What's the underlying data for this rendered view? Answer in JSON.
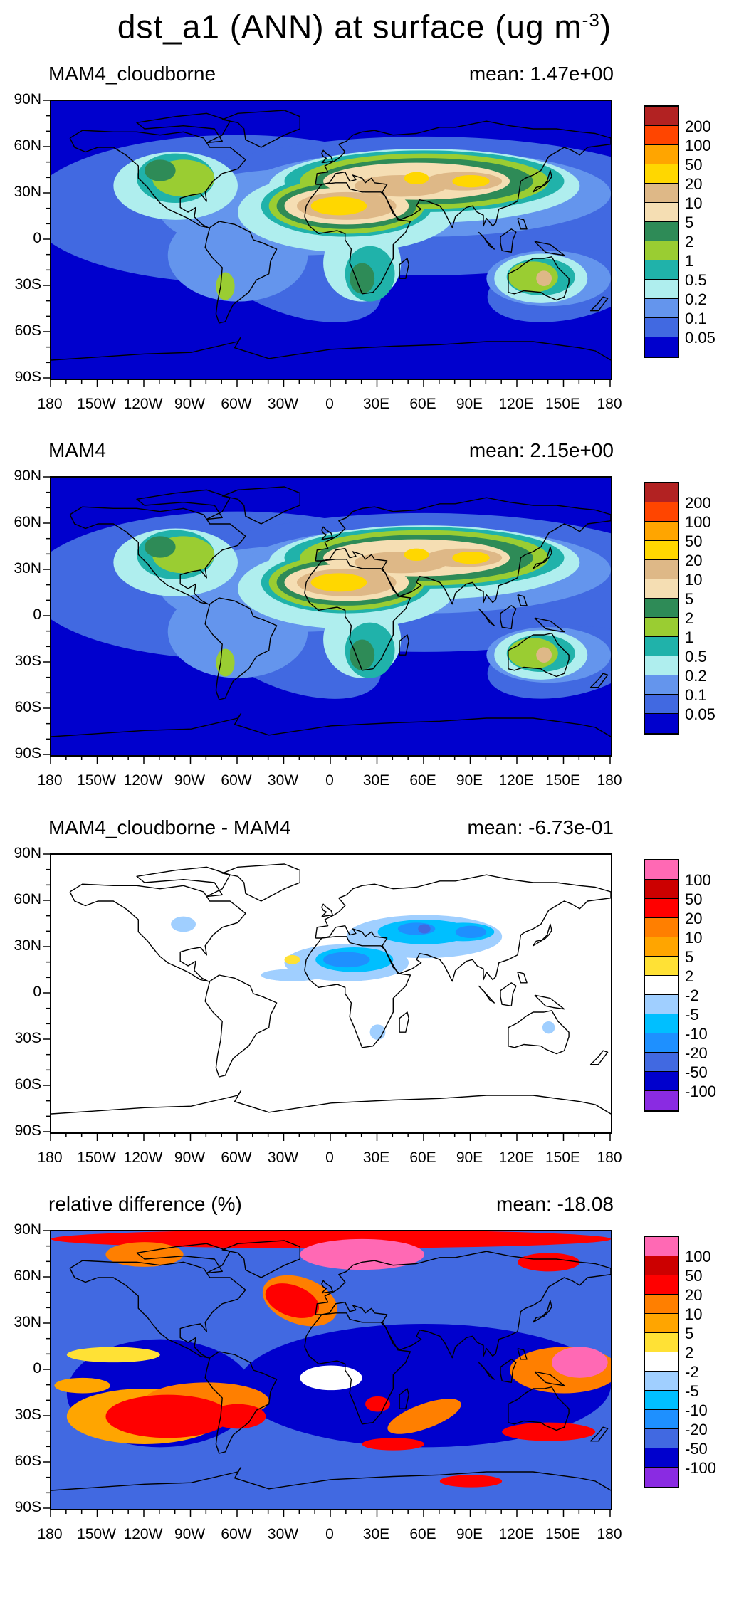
{
  "figure": {
    "title_main": "dst_a1 (ANN) at surface (ug m",
    "title_exp": "-3",
    "title_end": ")"
  },
  "axes": {
    "lat_labels": [
      "90N",
      "60N",
      "30N",
      "0",
      "30S",
      "60S",
      "90S"
    ],
    "lon_labels": [
      "180",
      "150W",
      "120W",
      "90W",
      "60W",
      "30W",
      "0",
      "30E",
      "60E",
      "90E",
      "120E",
      "150E",
      "180"
    ]
  },
  "panels": [
    {
      "name": "MAM4_cloudborne",
      "mean": "mean: 1.47e+00",
      "scheme": "conc",
      "colorbar": {
        "colors": [
          "#b22222",
          "#ff4500",
          "#ffa500",
          "#ffd700",
          "#deb887",
          "#f5deb3",
          "#2e8b57",
          "#9acd32",
          "#20b2aa",
          "#afeeee",
          "#6495ed",
          "#4169e1",
          "#0000cd"
        ],
        "labels": [
          "200",
          "100",
          "50",
          "20",
          "10",
          "5",
          "2",
          "1",
          "0.5",
          "0.2",
          "0.1",
          "0.05"
        ]
      }
    },
    {
      "name": "MAM4",
      "mean": "mean: 2.15e+00",
      "scheme": "conc",
      "colorbar": {
        "colors": [
          "#b22222",
          "#ff4500",
          "#ffa500",
          "#ffd700",
          "#deb887",
          "#f5deb3",
          "#2e8b57",
          "#9acd32",
          "#20b2aa",
          "#afeeee",
          "#6495ed",
          "#4169e1",
          "#0000cd"
        ],
        "labels": [
          "200",
          "100",
          "50",
          "20",
          "10",
          "5",
          "2",
          "1",
          "0.5",
          "0.2",
          "0.1",
          "0.05"
        ]
      }
    },
    {
      "name": "MAM4_cloudborne - MAM4",
      "mean": "mean: -6.73e-01",
      "scheme": "diff",
      "colorbar": {
        "colors": [
          "#ff69b4",
          "#cc0000",
          "#ff0000",
          "#ff7f00",
          "#ffa500",
          "#ffe135",
          "#ffffff",
          "#a0cfff",
          "#00bfff",
          "#1e90ff",
          "#4169e1",
          "#0000cd",
          "#8a2be2"
        ],
        "labels": [
          "100",
          "50",
          "20",
          "10",
          "5",
          "2",
          "-2",
          "-5",
          "-10",
          "-20",
          "-50",
          "-100"
        ]
      }
    },
    {
      "name": "relative difference (%)",
      "mean": "mean: -18.08",
      "scheme": "rel",
      "colorbar": {
        "colors": [
          "#ff69b4",
          "#cc0000",
          "#ff0000",
          "#ff7f00",
          "#ffa500",
          "#ffe135",
          "#ffffff",
          "#a0cfff",
          "#00bfff",
          "#1e90ff",
          "#4169e1",
          "#0000cd",
          "#8a2be2"
        ],
        "labels": [
          "100",
          "50",
          "20",
          "10",
          "5",
          "2",
          "-2",
          "-5",
          "-10",
          "-20",
          "-50",
          "-100"
        ]
      }
    }
  ]
}
